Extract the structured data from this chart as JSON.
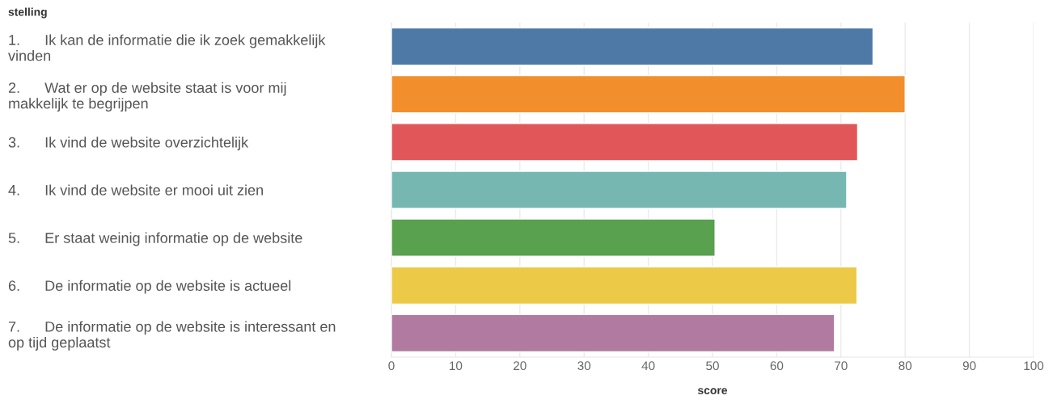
{
  "chart_data": {
    "type": "bar",
    "orientation": "horizontal",
    "annotations": [
      "stelling"
    ],
    "xlabel": "score",
    "categories": [
      "1.      Ik kan de informatie die ik zoek gemakkelijk\nvinden",
      "2.      Wat er op de website staat is voor mij\nmakkelijk te begrijpen",
      "3.      Ik vind de website overzichtelijk",
      "4.      Ik vind de website er mooi uit zien",
      "5.      Er staat weinig informatie op de website",
      "6.      De informatie op de website is actueel",
      "7.      De informatie op de website is interessant en\nop tijd geplaatst"
    ],
    "values": [
      75,
      80,
      72.6,
      70.9,
      50.4,
      72.5,
      69.0
    ],
    "colors": [
      "#4e79a7",
      "#f28e2b",
      "#e15759",
      "#76b7b2",
      "#59a14f",
      "#edc948",
      "#b07aa1"
    ],
    "xlim": [
      0,
      100
    ],
    "xticks": [
      0,
      10,
      20,
      30,
      40,
      50,
      60,
      70,
      80,
      90,
      100
    ],
    "grid": "x",
    "legend": false
  }
}
